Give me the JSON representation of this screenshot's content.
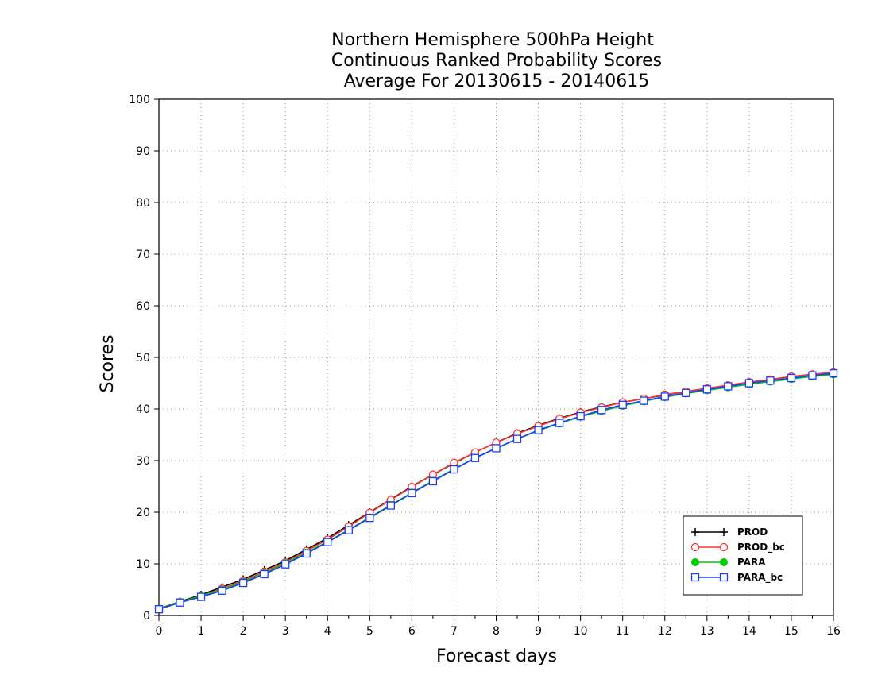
{
  "chart_data": {
    "type": "line",
    "title": [
      "Northern Hemisphere 500hPa Height",
      "Continuous Ranked Probability Scores",
      "Average For 20130615 - 20140615"
    ],
    "xlabel": "Forecast days",
    "ylabel": "Scores",
    "xlim": [
      0,
      16
    ],
    "ylim": [
      0,
      100
    ],
    "x_ticks": [
      "0",
      "1",
      "2",
      "3",
      "4",
      "5",
      "6",
      "7",
      "8",
      "9",
      "10",
      "11",
      "12",
      "13",
      "14",
      "15",
      "16"
    ],
    "y_ticks": [
      "0",
      "10",
      "20",
      "30",
      "40",
      "50",
      "60",
      "70",
      "80",
      "90",
      "100"
    ],
    "grid": true,
    "legend_position": "bottom-right",
    "x": [
      0,
      0.5,
      1,
      1.5,
      2,
      2.5,
      3,
      3.5,
      4,
      4.5,
      5,
      5.5,
      6,
      6.5,
      7,
      7.5,
      8,
      8.5,
      9,
      9.5,
      10,
      10.5,
      11,
      11.5,
      12,
      12.5,
      13,
      13.5,
      14,
      14.5,
      15,
      15.5,
      16
    ],
    "series": [
      {
        "name": "PROD",
        "color": "#000000",
        "marker": "plus",
        "values": [
          1.3,
          2.7,
          4.0,
          5.5,
          7.0,
          8.8,
          10.6,
          12.8,
          15.0,
          17.5,
          20.0,
          22.5,
          25.0,
          27.3,
          29.5,
          31.6,
          33.5,
          35.3,
          36.8,
          38.2,
          39.4,
          40.4,
          41.3,
          42.0,
          42.7,
          43.4,
          44.0,
          44.6,
          45.2,
          45.7,
          46.3,
          46.7,
          47.1
        ]
      },
      {
        "name": "PROD_bc",
        "color": "#ff3333",
        "marker": "circle-open",
        "values": [
          1.2,
          2.6,
          3.8,
          5.2,
          6.7,
          8.5,
          10.3,
          12.5,
          14.7,
          17.2,
          19.9,
          22.4,
          24.9,
          27.3,
          29.6,
          31.6,
          33.5,
          35.2,
          36.7,
          38.1,
          39.3,
          40.3,
          41.3,
          42.0,
          42.8,
          43.4,
          44.0,
          44.6,
          45.2,
          45.7,
          46.3,
          46.7,
          47.1
        ]
      },
      {
        "name": "PARA",
        "color": "#00cc00",
        "marker": "circle-filled",
        "values": [
          1.3,
          2.6,
          3.8,
          5.0,
          6.5,
          8.2,
          10.1,
          12.2,
          14.3,
          16.6,
          19.0,
          21.4,
          23.8,
          26.1,
          28.4,
          30.5,
          32.4,
          34.2,
          35.8,
          37.2,
          38.5,
          39.6,
          40.6,
          41.5,
          42.3,
          43.0,
          43.6,
          44.2,
          44.8,
          45.3,
          45.8,
          46.3,
          46.7
        ]
      },
      {
        "name": "PARA_bc",
        "color": "#1a3cff",
        "marker": "square-open",
        "values": [
          1.2,
          2.5,
          3.6,
          4.8,
          6.3,
          8.0,
          9.9,
          12.0,
          14.2,
          16.5,
          18.9,
          21.3,
          23.7,
          26.0,
          28.3,
          30.5,
          32.4,
          34.2,
          35.9,
          37.3,
          38.6,
          39.8,
          40.8,
          41.6,
          42.4,
          43.1,
          43.8,
          44.4,
          45.0,
          45.5,
          46.0,
          46.5,
          46.9
        ]
      }
    ]
  }
}
